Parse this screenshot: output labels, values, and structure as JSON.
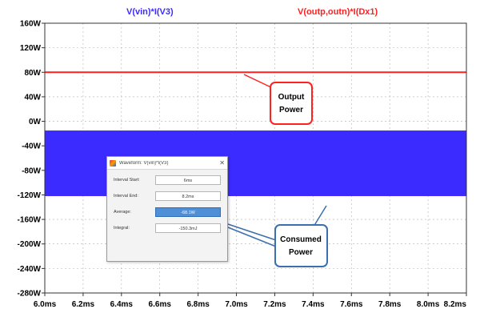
{
  "chart_data": {
    "type": "line",
    "x_ticks": [
      "6.0ms",
      "6.2ms",
      "6.4ms",
      "6.6ms",
      "6.8ms",
      "7.0ms",
      "7.2ms",
      "7.4ms",
      "7.6ms",
      "7.8ms",
      "8.0ms",
      "8.2ms"
    ],
    "y_ticks": [
      "160W",
      "120W",
      "80W",
      "40W",
      "0W",
      "-40W",
      "-80W",
      "-120W",
      "-160W",
      "-200W",
      "-240W",
      "-280W"
    ],
    "xlim_ms": [
      6.0,
      8.2
    ],
    "ylim_w": [
      -280,
      160
    ],
    "grid": true,
    "series": [
      {
        "name": "V(vin)*I(V3)",
        "color": "#3b2bff",
        "kind": "band",
        "y_min": -122,
        "y_max": -15
      },
      {
        "name": "V(outp,outn)*I(Dx1)",
        "color": "#ff2020",
        "kind": "line",
        "y": 80
      }
    ]
  },
  "callouts": {
    "output": {
      "line1": "Output",
      "line2": "Power",
      "color": "#ff2020"
    },
    "consumed": {
      "line1": "Consumed",
      "line2": "Power",
      "color": "#3a6fb0"
    }
  },
  "dialog": {
    "title": "Waveform: V(vin)*I(V3)",
    "close_glyph": "✕",
    "rows": [
      {
        "label": "Interval Start:",
        "value": "6ms"
      },
      {
        "label": "Interval End:",
        "value": "8.2ms"
      },
      {
        "label": "Average:",
        "value": "-68.1W"
      },
      {
        "label": "Integral:",
        "value": "-150.3mJ"
      }
    ]
  }
}
